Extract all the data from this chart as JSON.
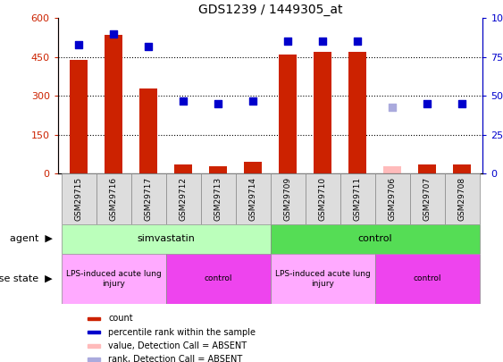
{
  "title": "GDS1239 / 1449305_at",
  "samples": [
    "GSM29715",
    "GSM29716",
    "GSM29717",
    "GSM29712",
    "GSM29713",
    "GSM29714",
    "GSM29709",
    "GSM29710",
    "GSM29711",
    "GSM29706",
    "GSM29707",
    "GSM29708"
  ],
  "bar_values": [
    440,
    535,
    330,
    35,
    28,
    45,
    460,
    470,
    470,
    30,
    35,
    35
  ],
  "bar_colors": [
    "#cc2200",
    "#cc2200",
    "#cc2200",
    "#cc2200",
    "#cc2200",
    "#cc2200",
    "#cc2200",
    "#cc2200",
    "#cc2200",
    "#ffbbbb",
    "#cc2200",
    "#cc2200"
  ],
  "dot_values_pct": [
    83,
    90,
    82,
    47,
    45,
    47,
    85,
    85,
    85,
    43,
    45,
    45
  ],
  "dot_colors": [
    "#0000cc",
    "#0000cc",
    "#0000cc",
    "#0000cc",
    "#0000cc",
    "#0000cc",
    "#0000cc",
    "#0000cc",
    "#0000cc",
    "#aaaadd",
    "#0000cc",
    "#0000cc"
  ],
  "ylim_left": [
    0,
    600
  ],
  "ylim_right": [
    0,
    100
  ],
  "yticks_left": [
    0,
    150,
    300,
    450,
    600
  ],
  "yticks_right": [
    0,
    25,
    50,
    75,
    100
  ],
  "grid_lines": [
    150,
    300,
    450
  ],
  "agent_groups": [
    {
      "label": "simvastatin",
      "start": 0,
      "end": 6,
      "color": "#bbffbb"
    },
    {
      "label": "control",
      "start": 6,
      "end": 12,
      "color": "#55dd55"
    }
  ],
  "disease_groups": [
    {
      "label": "LPS-induced acute lung\ninjury",
      "start": 0,
      "end": 3,
      "color": "#ffaaff"
    },
    {
      "label": "control",
      "start": 3,
      "end": 6,
      "color": "#ee44ee"
    },
    {
      "label": "LPS-induced acute lung\ninjury",
      "start": 6,
      "end": 9,
      "color": "#ffaaff"
    },
    {
      "label": "control",
      "start": 9,
      "end": 12,
      "color": "#ee44ee"
    }
  ],
  "legend_colors": [
    "#cc2200",
    "#0000cc",
    "#ffbbbb",
    "#aaaadd"
  ],
  "legend_labels": [
    "count",
    "percentile rank within the sample",
    "value, Detection Call = ABSENT",
    "rank, Detection Call = ABSENT"
  ],
  "bar_width": 0.5
}
